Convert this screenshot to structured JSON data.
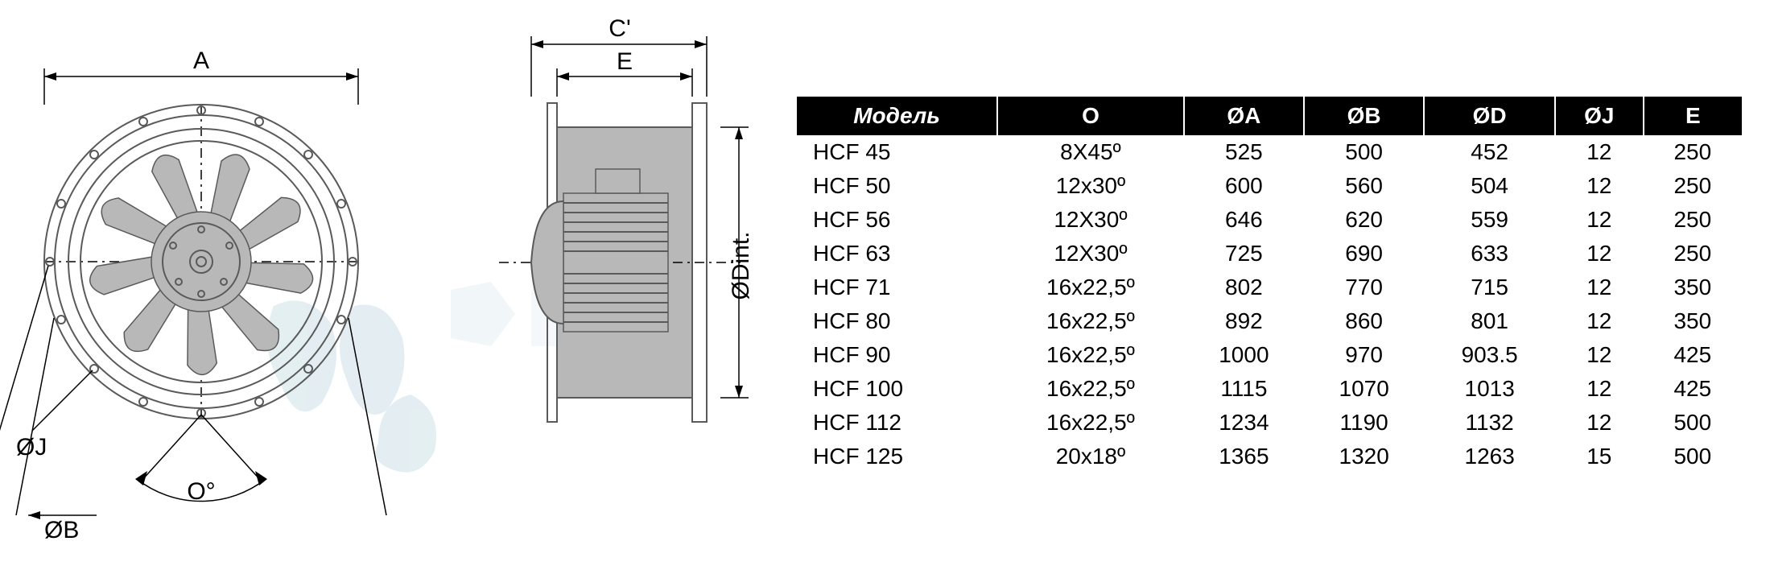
{
  "diagram": {
    "labels": {
      "A": "A",
      "C_prime": "C'",
      "E": "E",
      "phiJ": "ØJ",
      "phiB": "ØB",
      "O_deg": "O°",
      "phiDint": "ØDint."
    },
    "colors": {
      "background": "#ffffff",
      "drawing_stroke": "#5a5a5a",
      "drawing_fill": "#b8b8b8",
      "dim_stroke": "#000000",
      "watermark_fill": "#d9e8ed"
    },
    "line_widths": {
      "drawing": 2,
      "dimension": 1.5
    },
    "label_fontsize": 30
  },
  "table": {
    "font_size": 28,
    "header_bg": "#000000",
    "header_fg": "#ffffff",
    "body_fg": "#000000",
    "columns": [
      "Модель",
      "O",
      "ØA",
      "ØB",
      "ØD",
      "ØJ",
      "E"
    ],
    "col_align": [
      "left",
      "center",
      "center",
      "center",
      "center",
      "center",
      "center"
    ],
    "rows": [
      [
        "HCF 45",
        "8X45º",
        "525",
        "500",
        "452",
        "12",
        "250"
      ],
      [
        "HCF 50",
        "12x30º",
        "600",
        "560",
        "504",
        "12",
        "250"
      ],
      [
        "HCF 56",
        "12X30º",
        "646",
        "620",
        "559",
        "12",
        "250"
      ],
      [
        "HCF 63",
        "12X30º",
        "725",
        "690",
        "633",
        "12",
        "250"
      ],
      [
        "HCF 71",
        "16x22,5º",
        "802",
        "770",
        "715",
        "12",
        "350"
      ],
      [
        "HCF 80",
        "16x22,5º",
        "892",
        "860",
        "801",
        "12",
        "350"
      ],
      [
        "HCF 90",
        "16x22,5º",
        "1000",
        "970",
        "903.5",
        "12",
        "425"
      ],
      [
        "HCF 100",
        "16x22,5º",
        "1115",
        "1070",
        "1013",
        "12",
        "425"
      ],
      [
        "HCF 112",
        "16x22,5º",
        "1234",
        "1190",
        "1132",
        "12",
        "500"
      ],
      [
        "HCF 125",
        "20x18º",
        "1365",
        "1320",
        "1263",
        "15",
        "500"
      ]
    ]
  }
}
